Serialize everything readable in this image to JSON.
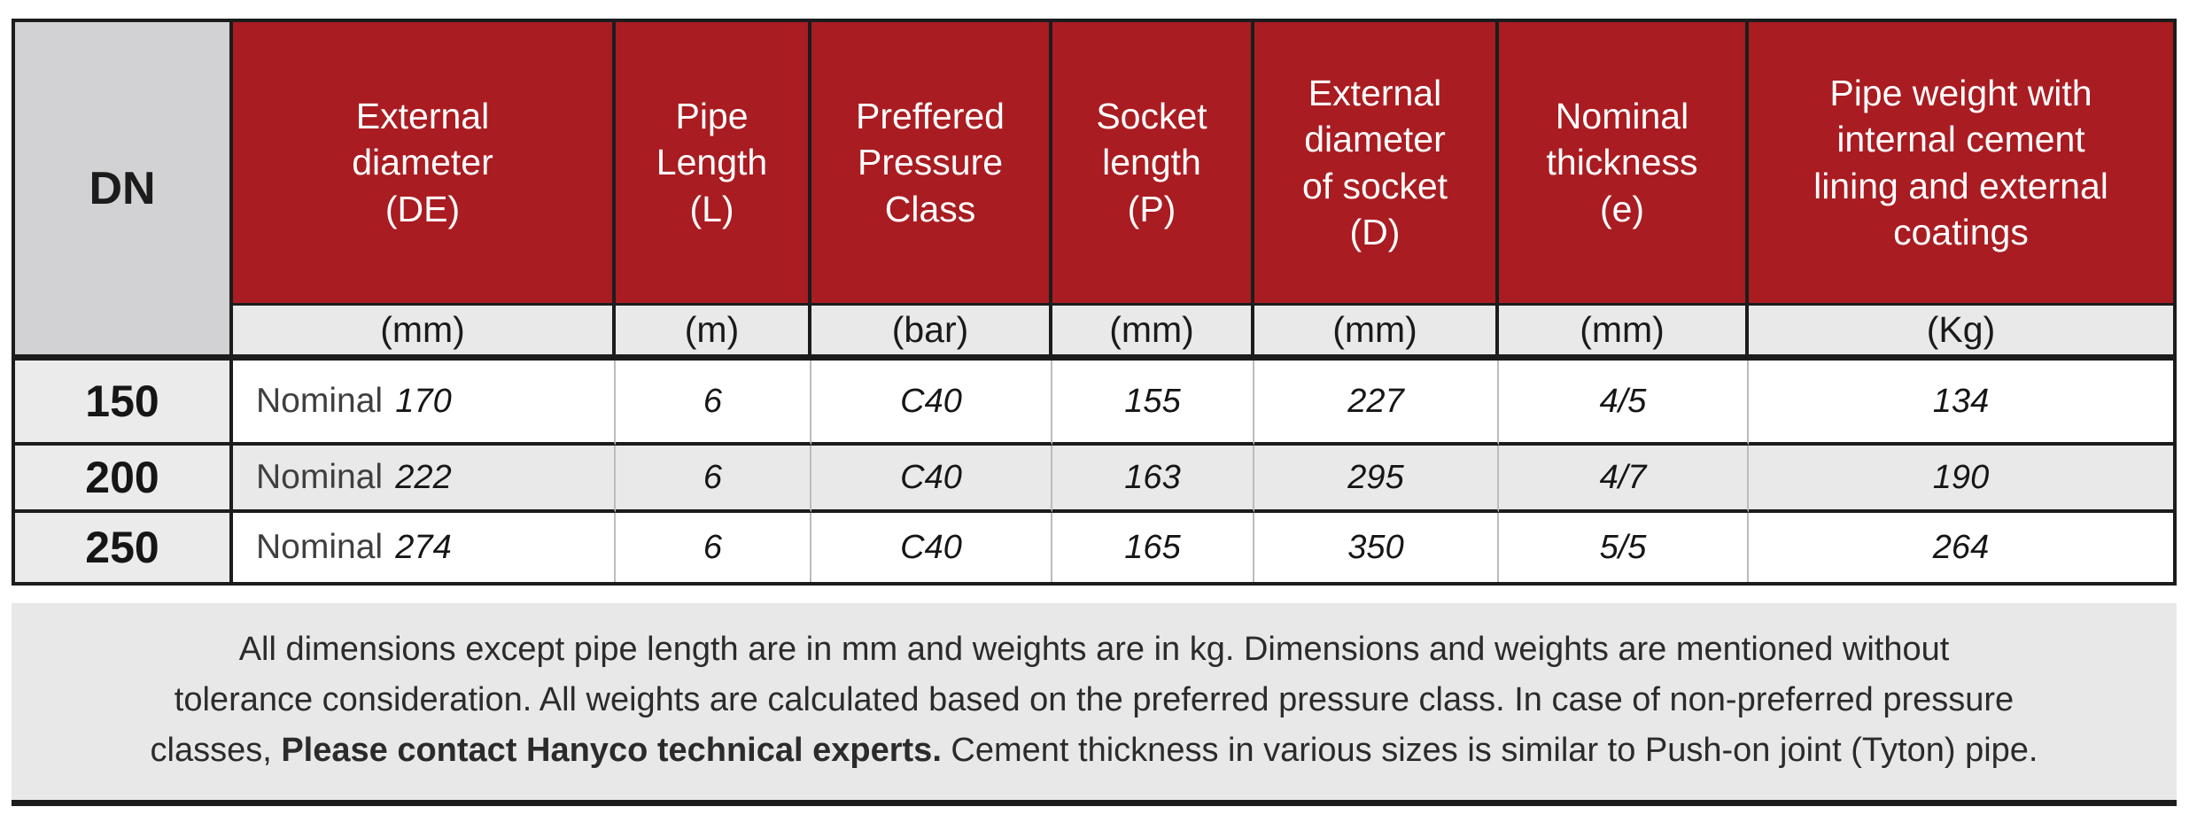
{
  "colors": {
    "header_red": "#a91c21",
    "corner_gray": "#d2d2d4",
    "row_shade_gray": "#e9e9ea",
    "dn_column_gray": "#ebebec",
    "footer_gray": "#e8e8e9",
    "border_black": "#1c1c1c"
  },
  "table": {
    "corner_header": "DN",
    "columns": [
      {
        "label": "External\ndiameter\n(DE)",
        "unit": "(mm)"
      },
      {
        "label": "Pipe\nLength\n(L)",
        "unit": "(m)"
      },
      {
        "label": "Preffered\nPressure\nClass",
        "unit": "(bar)"
      },
      {
        "label": "Socket\nlength\n(P)",
        "unit": "(mm)"
      },
      {
        "label": "External\ndiameter\nof socket\n(D)",
        "unit": "(mm)"
      },
      {
        "label": "Nominal\nthickness\n(e)",
        "unit": "(mm)"
      },
      {
        "label": "Pipe weight with\ninternal cement\nlining and external\ncoatings",
        "unit": "(Kg)"
      }
    ],
    "rows": [
      {
        "dn": "150",
        "diameter_type": "Nominal",
        "external_diameter": "170",
        "pipe_length": "6",
        "pressure_class": "C40",
        "socket_length": "155",
        "socket_external_diameter": "227",
        "nominal_thickness": "4/5",
        "pipe_weight": "134"
      },
      {
        "dn": "200",
        "diameter_type": "Nominal",
        "external_diameter": "222",
        "pipe_length": "6",
        "pressure_class": "C40",
        "socket_length": "163",
        "socket_external_diameter": "295",
        "nominal_thickness": "4/7",
        "pipe_weight": "190"
      },
      {
        "dn": "250",
        "diameter_type": "Nominal",
        "external_diameter": "274",
        "pipe_length": "6",
        "pressure_class": "C40",
        "socket_length": "165",
        "socket_external_diameter": "350",
        "nominal_thickness": "5/5",
        "pipe_weight": "264"
      }
    ]
  },
  "footer": {
    "line1": "All dimensions except pipe length are in mm and weights are in kg. Dimensions and weights are mentioned without",
    "line2": "tolerance consideration. All weights are calculated based on the preferred pressure class. In case of non-preferred pressure",
    "line3_pre": "classes, ",
    "line3_bold": "Please contact Hanyco technical experts.",
    "line3_post": " Cement thickness in various sizes is similar to Push-on joint (Tyton) pipe."
  }
}
